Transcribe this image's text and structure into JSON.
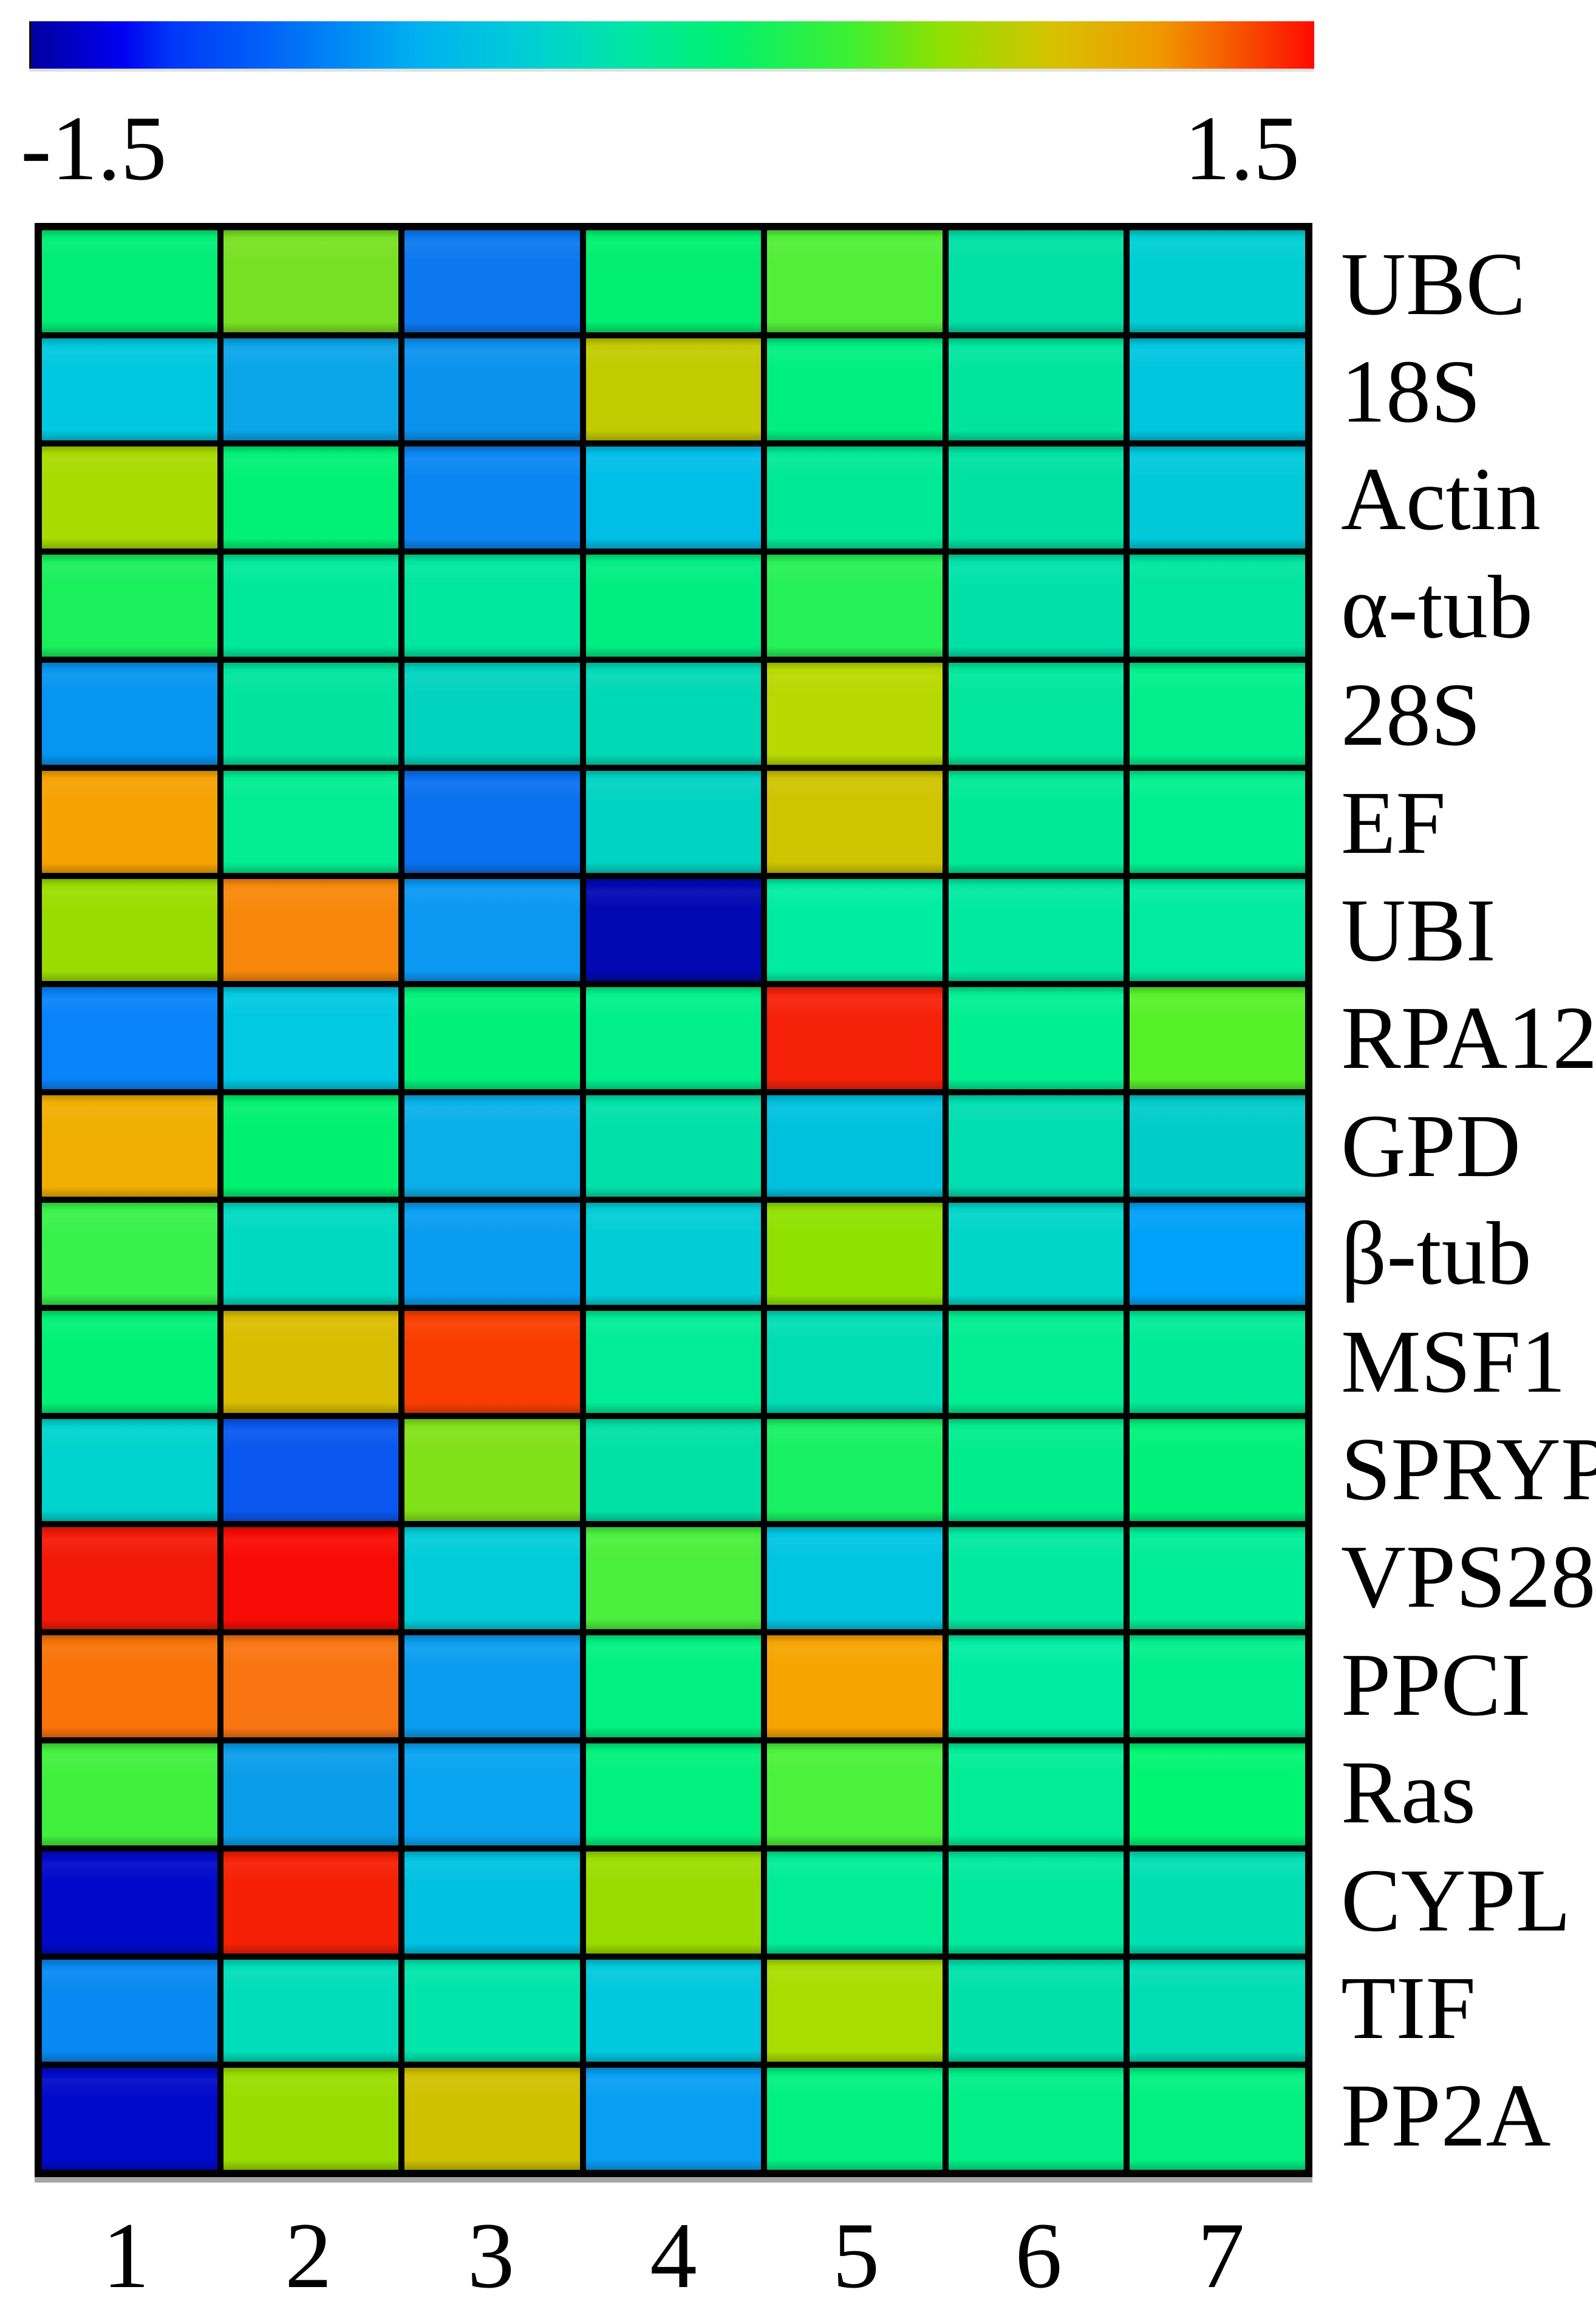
{
  "colorbar": {
    "min_label": "-1.5",
    "max_label": "1.5",
    "gradient": [
      "#0000A0 0%",
      "#0000F0 7%",
      "#0038F8 11%",
      "#0060F8 18%",
      "#00B0F0 30%",
      "#00CCD8 38%",
      "#00D8C0 42%",
      "#00E8A0 47%",
      "#00F070 54%",
      "#40F030 64%",
      "#90E000 71%",
      "#D8C000 80%",
      "#F09800 88%",
      "#F84800 95%",
      "#FF0A00 100%"
    ]
  },
  "chart_data": {
    "type": "heatmap",
    "title": "",
    "xlabel": "",
    "ylabel": "",
    "legend_position": "top",
    "scale": {
      "min": -1.5,
      "max": 1.5,
      "colormap": "jet"
    },
    "columns": [
      "1",
      "2",
      "3",
      "4",
      "5",
      "6",
      "7"
    ],
    "rows": [
      "UBC",
      "18S",
      "Actin",
      "α-tub",
      "28S",
      "EF",
      "UBI",
      "RPA12",
      "GPD",
      "β-tub",
      "MSF1",
      "SPRYP",
      "VPS28",
      "PPCI",
      "Ras",
      "CYPL",
      "TIF",
      "PP2A"
    ],
    "cell_colors": [
      [
        "#00ED76",
        "#79E123",
        "#0B78F0",
        "#00EF70",
        "#52EF38",
        "#00E0A4",
        "#00CFD2"
      ],
      [
        "#00C8DF",
        "#0AA5E9",
        "#0B92EF",
        "#C1CB00",
        "#00EF82",
        "#00E59E",
        "#00C5DF"
      ],
      [
        "#A8DB00",
        "#00F175",
        "#0A86F2",
        "#00BFE7",
        "#00E998",
        "#00E2A2",
        "#00C9DA"
      ],
      [
        "#19F05C",
        "#00E99A",
        "#00E79E",
        "#00ED82",
        "#26F156",
        "#00E1A8",
        "#00E5A0"
      ],
      [
        "#0695F1",
        "#00E49F",
        "#00D3BF",
        "#00D9B5",
        "#B8D900",
        "#00E79B",
        "#00EF8B"
      ],
      [
        "#F6A200",
        "#00ED92",
        "#0A70F0",
        "#00D3C2",
        "#CFC400",
        "#00E996",
        "#00EF8E"
      ],
      [
        "#9BDC00",
        "#F8880B",
        "#0A98F3",
        "#0009B2",
        "#00EDA1",
        "#00E9A1",
        "#00EBA0"
      ],
      [
        "#0883F9",
        "#00C9E1",
        "#00F179",
        "#00EF8D",
        "#F62109",
        "#00EF91",
        "#56F129"
      ],
      [
        "#F0AF00",
        "#00F171",
        "#0AAFE9",
        "#00E1A9",
        "#00C1DD",
        "#00DDB1",
        "#00CDC9"
      ],
      [
        "#39F14B",
        "#00D9C1",
        "#089DF1",
        "#00CDD5",
        "#90E100",
        "#00D5C9",
        "#00A1F9"
      ],
      [
        "#00F175",
        "#D9BD00",
        "#F93D00",
        "#00ED95",
        "#00DDB5",
        "#00ED91",
        "#00EB97"
      ],
      [
        "#00D3CD",
        "#0957EF",
        "#81E119",
        "#00E1A5",
        "#17F163",
        "#00ED8D",
        "#00F17B"
      ],
      [
        "#F31908",
        "#F90B05",
        "#00CDD9",
        "#4BEF3D",
        "#00C5E1",
        "#00E9A1",
        "#00ED97"
      ],
      [
        "#F97309",
        "#F97511",
        "#0A9DEF",
        "#00F181",
        "#F6A400",
        "#00EDA1",
        "#00EF8D"
      ],
      [
        "#41EF3D",
        "#0A9DE9",
        "#08A3F1",
        "#00F17D",
        "#4BF13B",
        "#00ED95",
        "#00F573"
      ],
      [
        "#0009C9",
        "#F51F05",
        "#00C1E1",
        "#9BDC00",
        "#00ED95",
        "#00E99D",
        "#00DFB1"
      ],
      [
        "#0889F1",
        "#00DDB9",
        "#00E5A9",
        "#00C9DD",
        "#A9DD00",
        "#00E1A9",
        "#00DDB5"
      ],
      [
        "#000AC9",
        "#99DD00",
        "#D0C100",
        "#089FF3",
        "#00F181",
        "#00EF87",
        "#00F181"
      ]
    ],
    "values": [
      [
        -0.2,
        0.28,
        -0.98,
        -0.15,
        0.14,
        -0.35,
        -0.53
      ],
      [
        -0.6,
        -0.83,
        -0.88,
        0.65,
        -0.15,
        -0.3,
        -0.62
      ],
      [
        0.5,
        -0.12,
        -0.93,
        -0.68,
        -0.25,
        -0.33,
        -0.6
      ],
      [
        0.0,
        -0.25,
        -0.27,
        -0.2,
        0.03,
        -0.35,
        -0.3
      ],
      [
        -0.9,
        -0.3,
        -0.5,
        -0.45,
        0.57,
        -0.27,
        -0.15
      ],
      [
        1.0,
        -0.2,
        -1.0,
        -0.5,
        0.72,
        -0.25,
        -0.15
      ],
      [
        0.45,
        1.1,
        -0.9,
        -1.42,
        -0.2,
        -0.25,
        -0.23
      ],
      [
        -0.95,
        -0.6,
        -0.12,
        -0.15,
        1.38,
        -0.15,
        0.17
      ],
      [
        0.95,
        -0.12,
        -0.8,
        -0.35,
        -0.65,
        -0.4,
        -0.55
      ],
      [
        0.08,
        -0.45,
        -0.88,
        -0.55,
        0.36,
        -0.5,
        -0.85
      ],
      [
        -0.12,
        0.78,
        1.3,
        -0.2,
        -0.4,
        -0.15,
        -0.23
      ],
      [
        -0.5,
        -1.1,
        0.3,
        -0.35,
        0.0,
        -0.2,
        -0.12
      ],
      [
        1.38,
        1.43,
        -0.55,
        0.12,
        -0.62,
        -0.25,
        -0.2
      ],
      [
        1.15,
        1.15,
        -0.88,
        -0.12,
        1.0,
        -0.2,
        -0.15
      ],
      [
        0.12,
        -0.88,
        -0.85,
        -0.13,
        0.12,
        -0.2,
        -0.1
      ],
      [
        -1.4,
        1.38,
        -0.65,
        0.45,
        -0.2,
        -0.25,
        -0.4
      ],
      [
        -0.95,
        -0.4,
        -0.3,
        -0.6,
        0.5,
        -0.35,
        -0.42
      ],
      [
        -1.4,
        0.45,
        0.72,
        -0.87,
        -0.12,
        -0.15,
        -0.12
      ]
    ]
  }
}
